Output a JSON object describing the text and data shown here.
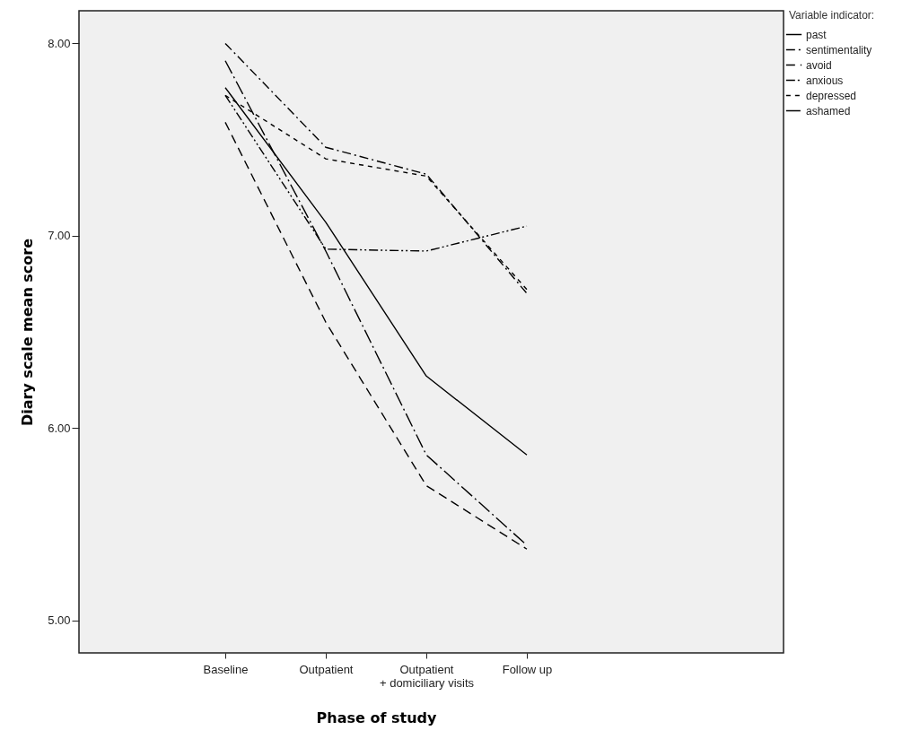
{
  "chart_data": {
    "type": "line",
    "xlabel": "Phase of study",
    "ylabel": "Diary scale mean score",
    "legend_title": "Variable indicator:",
    "legend": "top right",
    "grid": false,
    "categories": [
      "Baseline",
      "Outpatient",
      "Outpatient + domiciliary visits",
      "Follow up"
    ],
    "ylim": [
      4.83,
      8.17
    ],
    "yticks": [
      {
        "value": 5,
        "label": "5.00"
      },
      {
        "value": 6,
        "label": "6.00"
      },
      {
        "value": 7,
        "label": "7.00"
      },
      {
        "value": 8,
        "label": "8.00"
      }
    ],
    "series": [
      {
        "name": "past",
        "color": "#000000",
        "line_style": "solid",
        "values": [
          7.77,
          7.07,
          6.27,
          5.86
        ]
      },
      {
        "name": "sentimentality",
        "color": "#000000",
        "line_style": "dashdot",
        "values": [
          8.0,
          7.46,
          7.32,
          6.7
        ]
      },
      {
        "name": "avoid",
        "color": "#000000",
        "line_style": "dashed",
        "values": [
          7.59,
          6.55,
          5.7,
          5.37
        ]
      },
      {
        "name": "anxious",
        "color": "#000000",
        "line_style": "dashdotdot",
        "values": [
          7.73,
          6.93,
          6.92,
          7.05
        ]
      },
      {
        "name": "depressed",
        "color": "#000000",
        "line_style": "dotted",
        "values": [
          7.73,
          7.4,
          7.31,
          6.72
        ]
      },
      {
        "name": "ashamed",
        "color": "#000000",
        "line_style": "longdashdot",
        "values": [
          7.91,
          6.92,
          5.86,
          5.39
        ]
      }
    ]
  }
}
